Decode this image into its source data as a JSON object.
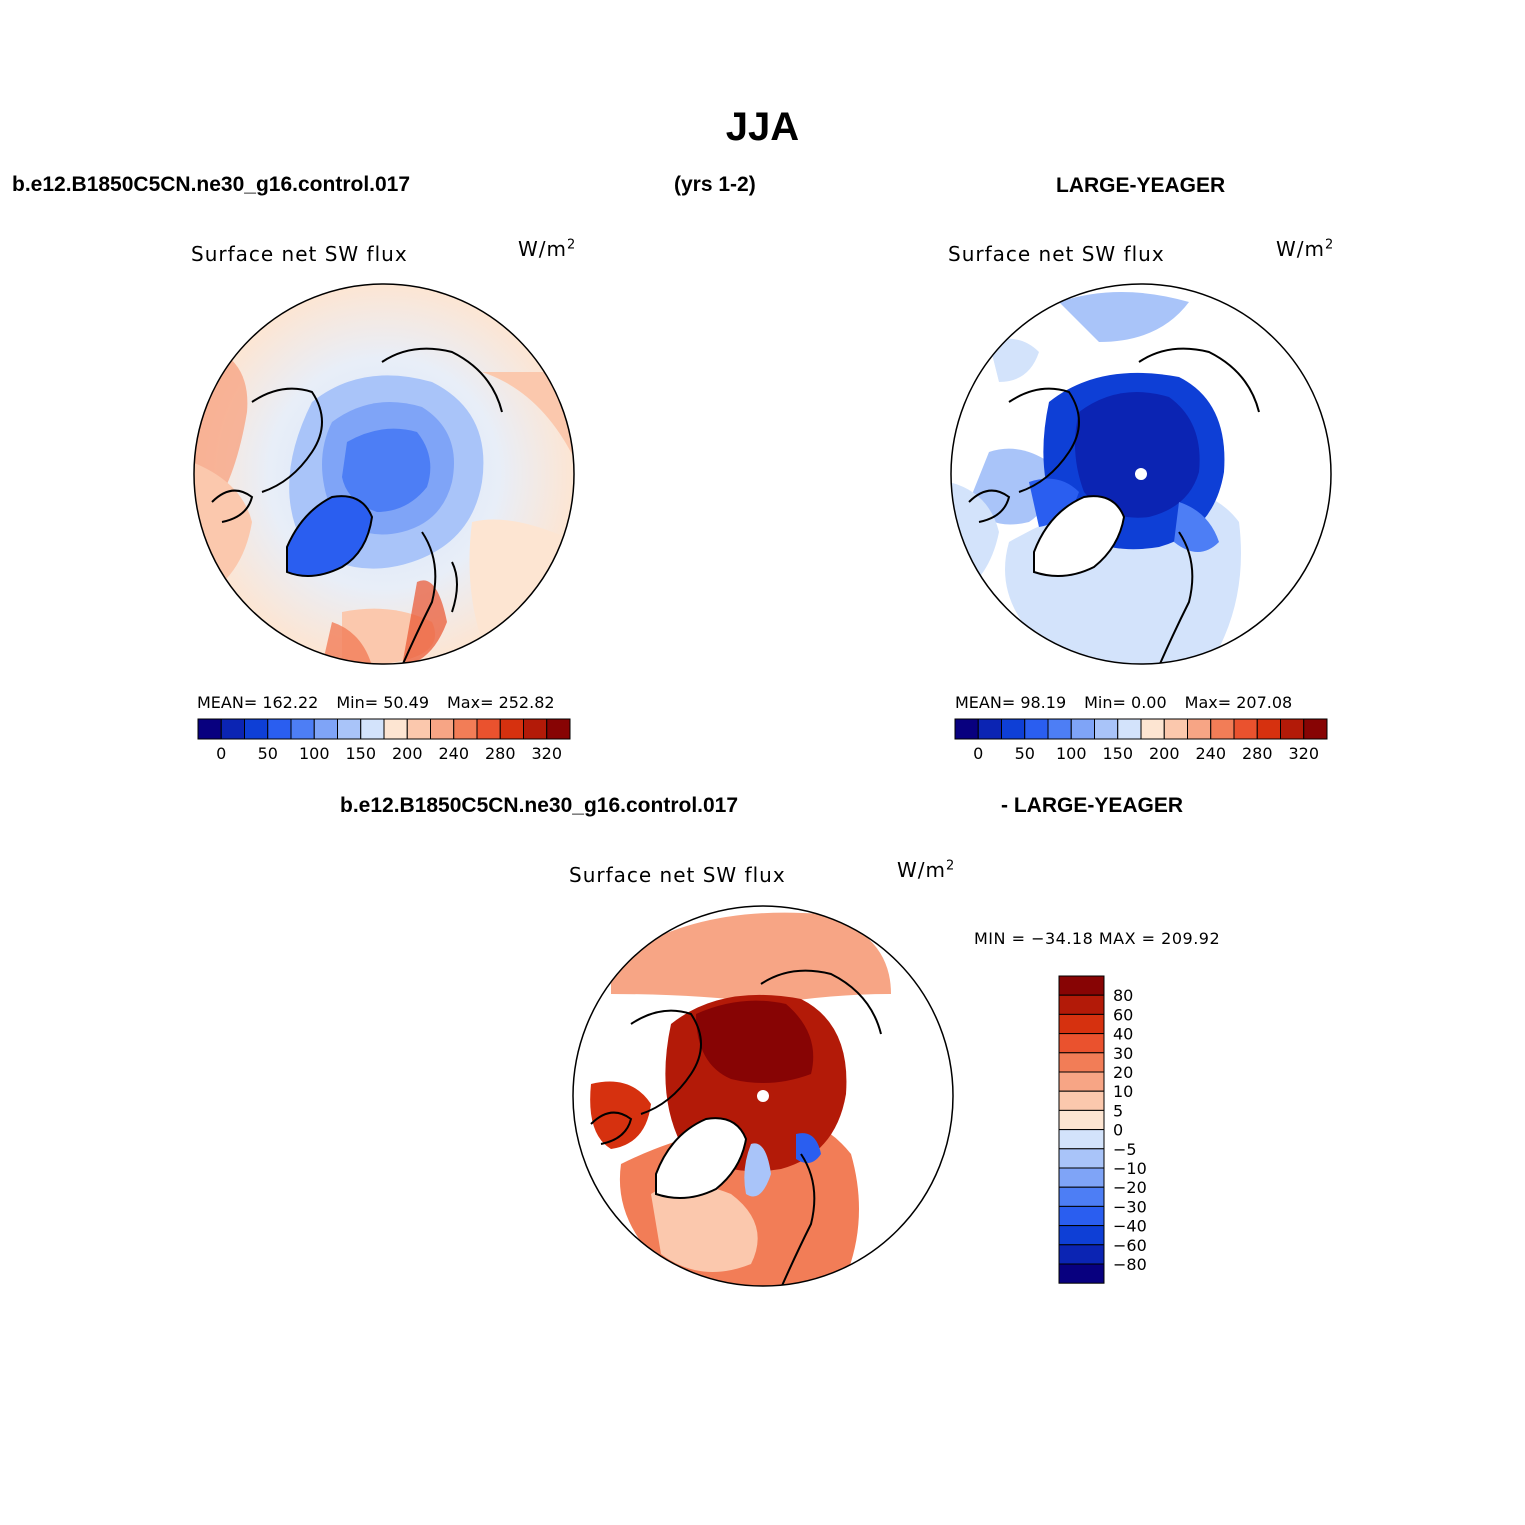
{
  "figure": {
    "title": "JJA",
    "case_left": "b.e12.B1850C5CN.ne30_g16.control.017",
    "years": "(yrs 1-2)",
    "case_right": "LARGE-YEAGER",
    "diff_case_left": "b.e12.B1850C5CN.ne30_g16.control.017",
    "diff_case_right": "- LARGE-YEAGER"
  },
  "panels": [
    {
      "id": "model",
      "plot_title": "Surface net SW flux",
      "units": "W/m",
      "units_sup": "2",
      "mean_label": "MEAN= 162.22",
      "min_label": "Min= 50.49",
      "max_label": "Max= 252.82",
      "mean": 162.22,
      "min": 50.49,
      "max": 252.82,
      "colorbar_ticks": [
        "0",
        "50",
        "100",
        "150",
        "200",
        "240",
        "280",
        "320"
      ]
    },
    {
      "id": "obs",
      "plot_title": "Surface net SW flux",
      "units": "W/m",
      "units_sup": "2",
      "mean_label": "MEAN= 98.19",
      "min_label": "Min= 0.00",
      "max_label": "Max= 207.08",
      "mean": 98.19,
      "min": 0.0,
      "max": 207.08,
      "colorbar_ticks": [
        "0",
        "50",
        "100",
        "150",
        "200",
        "240",
        "280",
        "320"
      ]
    },
    {
      "id": "difference",
      "plot_title": "Surface net SW flux",
      "units": "W/m",
      "units_sup": "2",
      "minmax_label": "MIN = −34.18  MAX = 209.92",
      "min": -34.18,
      "max": 209.92,
      "colorbar_ticks": [
        "80",
        "60",
        "40",
        "30",
        "20",
        "10",
        "5",
        "0",
        "−5",
        "−10",
        "−20",
        "−30",
        "−40",
        "−60",
        "−80"
      ]
    }
  ],
  "colors": {
    "abs_scale": [
      "#08007f",
      "#0b24b3",
      "#0e3fd6",
      "#2a5ef0",
      "#4d7ef5",
      "#7fa4f7",
      "#a9c4f9",
      "#d3e3fb",
      "#fde5d2",
      "#fbc8ad",
      "#f7a585",
      "#f27d57",
      "#ea522e",
      "#d6310f",
      "#b31a08",
      "#870404"
    ],
    "diff_scale": [
      "#870404",
      "#b31a08",
      "#d6310f",
      "#ea522e",
      "#f27d57",
      "#f7a585",
      "#fbc8ad",
      "#fde5d2",
      "#d3e3fb",
      "#a9c4f9",
      "#7fa4f7",
      "#4d7ef5",
      "#2a5ef0",
      "#0e3fd6",
      "#0b24b3",
      "#08007f"
    ]
  }
}
